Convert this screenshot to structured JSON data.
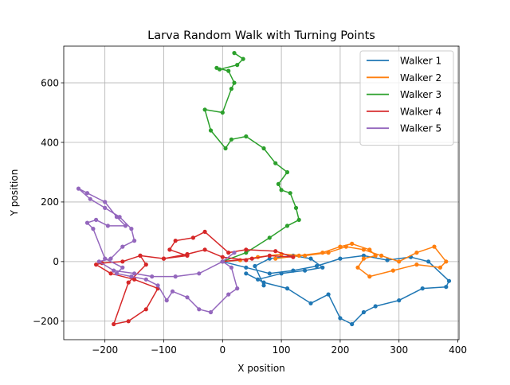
{
  "chart_data": {
    "type": "line",
    "title": "Larva Random Walk with Turning Points",
    "xlabel": "X position",
    "ylabel": "Y position",
    "xlim": [
      -270,
      402
    ],
    "ylim": [
      -262,
      723
    ],
    "xticks": [
      -200,
      -100,
      0,
      100,
      200,
      300,
      400
    ],
    "yticks": [
      -200,
      0,
      200,
      400,
      600
    ],
    "grid": true,
    "legend_position": "top-right",
    "marker": "circle",
    "series": [
      {
        "name": "Walker 1",
        "color": "#1f77b4",
        "x": [
          0,
          40,
          80,
          120,
          160,
          200,
          240,
          280,
          320,
          350,
          385,
          380,
          340,
          300,
          260,
          240,
          220,
          200,
          180,
          150,
          110,
          70,
          40,
          60,
          100,
          140,
          170,
          150,
          120,
          80,
          55,
          70
        ],
        "y": [
          0,
          -20,
          -40,
          -30,
          -15,
          10,
          20,
          5,
          15,
          0,
          -65,
          -85,
          -90,
          -130,
          -150,
          -170,
          -210,
          -190,
          -110,
          -140,
          -90,
          -70,
          -40,
          -60,
          -40,
          -30,
          -20,
          10,
          20,
          10,
          -15,
          -80
        ]
      },
      {
        "name": "Walker 2",
        "color": "#ff7f0e",
        "x": [
          0,
          30,
          60,
          100,
          140,
          180,
          210,
          240,
          270,
          300,
          330,
          360,
          380,
          370,
          330,
          290,
          250,
          230,
          240,
          260,
          250,
          220,
          200,
          170,
          130,
          90
        ],
        "y": [
          0,
          5,
          15,
          25,
          20,
          30,
          50,
          40,
          20,
          0,
          30,
          50,
          0,
          -20,
          -10,
          -30,
          -50,
          -20,
          10,
          20,
          40,
          60,
          50,
          30,
          20,
          10
        ]
      },
      {
        "name": "Walker 3",
        "color": "#2ca02c",
        "x": [
          0,
          40,
          80,
          110,
          130,
          125,
          115,
          100,
          95,
          110,
          90,
          70,
          40,
          15,
          5,
          -20,
          -30,
          0,
          15,
          20,
          10,
          -10,
          -5,
          25,
          35,
          20
        ],
        "y": [
          0,
          30,
          80,
          120,
          140,
          180,
          230,
          240,
          260,
          300,
          330,
          380,
          420,
          410,
          380,
          440,
          510,
          500,
          580,
          600,
          640,
          650,
          645,
          660,
          680,
          700
        ]
      },
      {
        "name": "Walker 4",
        "color": "#d62728",
        "x": [
          0,
          50,
          80,
          120,
          90,
          40,
          10,
          -30,
          -50,
          -80,
          -90,
          -60,
          -100,
          -140,
          -130,
          -160,
          -185,
          -160,
          -130,
          -110,
          -150,
          -190,
          -215,
          -205,
          -170,
          -140,
          -100,
          -60,
          -30,
          0,
          40
        ],
        "y": [
          0,
          10,
          20,
          15,
          35,
          40,
          30,
          100,
          80,
          70,
          40,
          20,
          10,
          20,
          -10,
          -70,
          -210,
          -200,
          -160,
          -90,
          -60,
          -40,
          -10,
          -5,
          0,
          20,
          10,
          25,
          40,
          15,
          5
        ]
      },
      {
        "name": "Walker 5",
        "color": "#9467bd",
        "x": [
          0,
          15,
          25,
          10,
          -20,
          -40,
          -60,
          -85,
          -95,
          -110,
          -130,
          -155,
          -180,
          -170,
          -200,
          -220,
          -230,
          -215,
          -195,
          -165,
          -180,
          -200,
          -230,
          -245,
          -225,
          -200,
          -175,
          -155,
          -150,
          -170,
          -190,
          -210,
          -185,
          -150,
          -120,
          -80,
          -40,
          0,
          20
        ],
        "y": [
          0,
          -20,
          -90,
          -110,
          -170,
          -160,
          -120,
          -100,
          -130,
          -80,
          -60,
          -50,
          -40,
          -20,
          10,
          110,
          130,
          140,
          120,
          120,
          150,
          200,
          230,
          245,
          210,
          180,
          150,
          110,
          70,
          50,
          10,
          0,
          -30,
          -40,
          -50,
          -50,
          -40,
          0,
          30
        ]
      }
    ]
  }
}
